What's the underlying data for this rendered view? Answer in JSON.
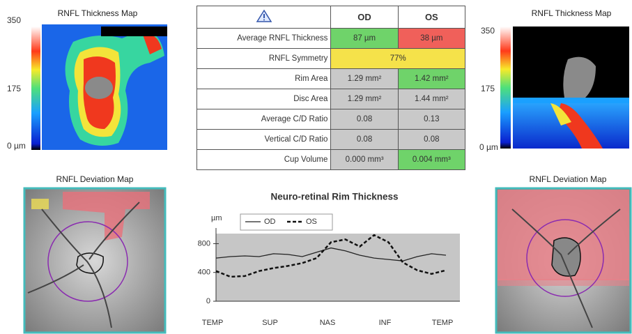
{
  "left_thickness_map": {
    "title": "RNFL Thickness Map",
    "scale": [
      "350",
      "175",
      "0 µm"
    ]
  },
  "right_thickness_map": {
    "title": "RNFL Thickness Map",
    "scale": [
      "350",
      "175",
      "0 µm"
    ]
  },
  "left_deviation_map": {
    "title": "RNFL Deviation Map"
  },
  "right_deviation_map": {
    "title": "RNFL Deviation Map"
  },
  "table": {
    "header": [
      "OD",
      "OS"
    ],
    "rows": [
      [
        "Average RNFL Thickness",
        "87 µm",
        "38 µm"
      ],
      [
        "RNFL Symmetry",
        "77%"
      ],
      [
        "Rim Area",
        "1.29 mm²",
        "1.42 mm²"
      ],
      [
        "Disc Area",
        "1.29 mm²",
        "1.44 mm²"
      ],
      [
        "Average C/D Ratio",
        "0.08",
        "0.13"
      ],
      [
        "Vertical C/D Ratio",
        "0.08",
        "0.08"
      ],
      [
        "Cup Volume",
        "0.000 mm³",
        "0.004 mm³"
      ]
    ]
  },
  "chart_data": {
    "type": "line",
    "title": "Neuro-retinal Rim Thickness",
    "y_label": "µm",
    "categories": [
      "TEMP",
      null,
      null,
      null,
      "SUP",
      null,
      null,
      null,
      "NAS",
      null,
      null,
      null,
      "INF",
      null,
      null,
      null,
      "TEMP"
    ],
    "series": [
      {
        "name": "OD",
        "color": "#222222",
        "dash": false,
        "values": [
          600,
          620,
          630,
          620,
          660,
          650,
          620,
          680,
          740,
          700,
          640,
          600,
          580,
          560,
          620,
          660,
          640
        ]
      },
      {
        "name": "OS",
        "color": "#111111",
        "dash": true,
        "values": [
          420,
          340,
          350,
          420,
          460,
          490,
          530,
          600,
          820,
          860,
          760,
          920,
          820,
          540,
          430,
          380,
          430
        ]
      }
    ],
    "ylim": [
      0,
      940
    ],
    "yticks": [
      0,
      400,
      800
    ]
  }
}
